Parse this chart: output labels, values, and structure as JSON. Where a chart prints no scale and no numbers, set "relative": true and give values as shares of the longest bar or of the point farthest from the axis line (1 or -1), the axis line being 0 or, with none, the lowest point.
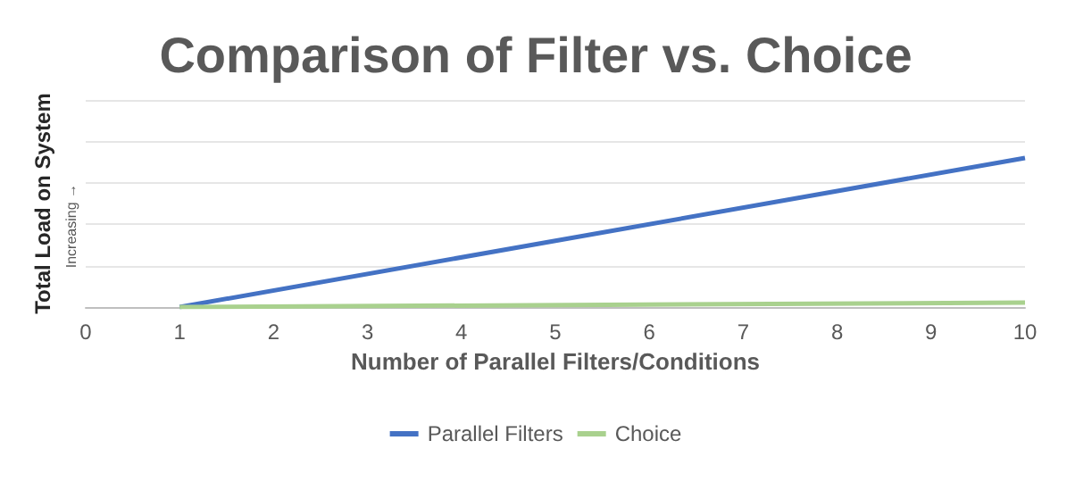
{
  "chart_data": {
    "type": "line",
    "title": "Comparison of Filter vs. Choice",
    "xlabel": "Number of Parallel Filters/Conditions",
    "ylabel": "Total Load on System",
    "annotations": [
      "Increasing →"
    ],
    "xlim": [
      0,
      10
    ],
    "xticks": [
      0,
      1,
      2,
      3,
      4,
      5,
      6,
      7,
      8,
      9,
      10
    ],
    "relative": true,
    "x": [
      1,
      10
    ],
    "grid": "y",
    "legend": "bottom",
    "marker": "none",
    "line_style": "solid",
    "series": [
      {
        "name": "Parallel Filters",
        "color": "#4472c4",
        "values": [
          0,
          1
        ]
      },
      {
        "name": "Choice",
        "color": "#a9d18e",
        "values": [
          0,
          0.03
        ]
      }
    ]
  }
}
